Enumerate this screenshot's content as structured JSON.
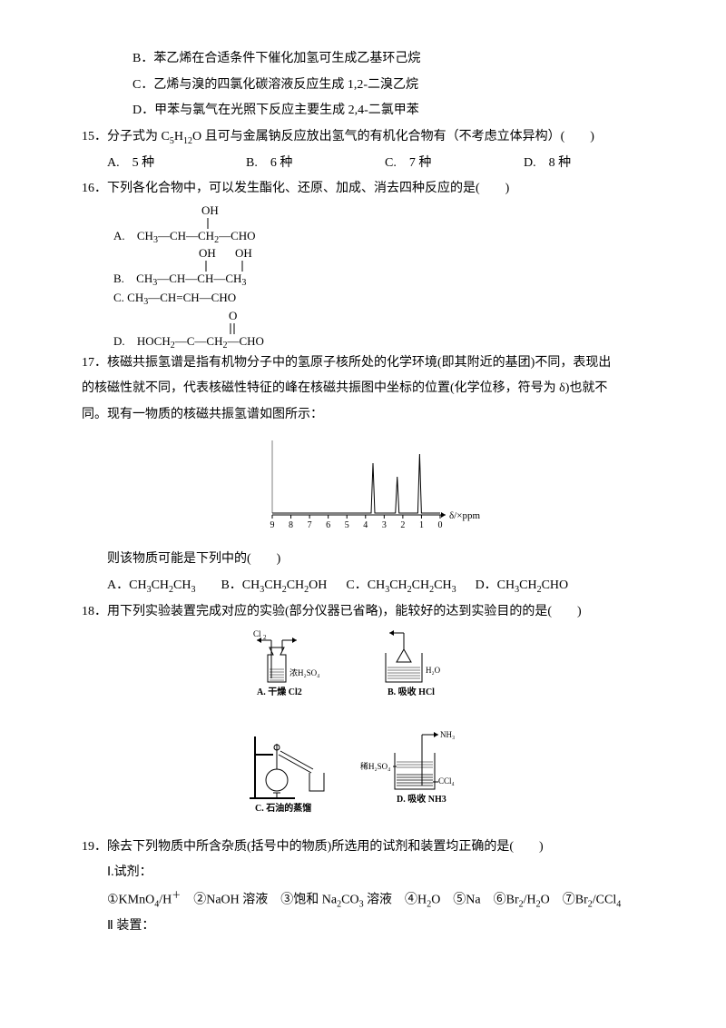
{
  "optionsBD": {
    "B": "B．苯乙烯在合适条件下催化加氢可生成乙基环己烷",
    "C": "C．乙烯与溴的四氯化碳溶液反应生成 1,2-二溴乙烷",
    "D": "D．甲苯与氯气在光照下反应主要生成 2,4-二氯甲苯"
  },
  "q15": {
    "num": "15．",
    "text_a": "分子式为 C",
    "text_b": "H",
    "text_c": "O 且可与金属钠反应放出氢气的有机化合物有（不考虑立体异构）(　　)",
    "opts": {
      "A": "A.　5 种",
      "B": "B.　6 种",
      "C": "C.　7 种",
      "D": "D.　8 种"
    }
  },
  "q16": {
    "num": "16．",
    "text": "下列各化合物中，可以发生酯化、还原、加成、消去四种反应的是(　　)",
    "structs": {
      "A": {
        "label": "A.",
        "oh": "OH",
        "formula": [
          "CH",
          "3",
          "—CH—CH",
          "2",
          "—CHO"
        ]
      },
      "B": {
        "label": "B.",
        "oh1": "OH",
        "oh2": "OH",
        "formula": [
          "CH",
          "3",
          "—CH—CH—CH",
          "3",
          ""
        ]
      },
      "C": {
        "label": "C.",
        "formula": [
          "CH",
          "3",
          "—CH=CH—CHO"
        ]
      },
      "D": {
        "label": "D.",
        "o": "O",
        "formula": [
          "HOCH",
          "2",
          "—C—CH",
          "2",
          "—CHO"
        ]
      }
    }
  },
  "q17": {
    "num": "17．",
    "p1": "核磁共振氢谱是指有机物分子中的氢原子核所处的化学环境(即其附近的基团)不同，表现出",
    "p2": "的核磁性就不同，代表核磁性特征的峰在核磁共振图中坐标的位置(化学位移，符号为 δ)也就不",
    "p3": "同。现有一物质的核磁共振氢谱如图所示：",
    "nmr": {
      "axis": [
        "9",
        "8",
        "7",
        "6",
        "5",
        "4",
        "3",
        "2",
        "1",
        "0"
      ],
      "xlabel": "δ/×ppm",
      "peaks": [
        {
          "x": 3.6,
          "h": 55
        },
        {
          "x": 2.3,
          "h": 40
        },
        {
          "x": 1.1,
          "h": 65
        }
      ],
      "bg": "#ffffff",
      "line": "#000000"
    },
    "after": "则该物质可能是下列中的(　　)",
    "opts": {
      "A": "A．CH3CH2CH3",
      "B": "B．CH3CH2CH2OH",
      "C": "C．CH3CH2CH2CH3",
      "D": "D．CH3CH2CHO"
    }
  },
  "q18": {
    "num": "18．",
    "text": "用下列实验装置完成对应的实验(部分仪器已省略)，能较好的达到实验目的的是(　　)",
    "apparatus": {
      "A": {
        "gas": "Cl2",
        "liquid": "浓H2SO4",
        "caption": "A. 干燥 Cl2"
      },
      "B": {
        "gas": "HCl",
        "liquid": "H2O",
        "caption": "B. 吸收 HCl"
      },
      "C": {
        "caption": "C. 石油的蒸馏"
      },
      "D": {
        "gas": "NH3",
        "liq1": "稀H2SO4",
        "liq2": "CCl4",
        "caption": "D. 吸收 NH3"
      }
    }
  },
  "q19": {
    "num": "19．",
    "text": "除去下列物质中所含杂质(括号中的物质)所选用的试剂和装置均正确的是(　　)",
    "sec1": "Ⅰ.试剂：",
    "reagents": "①KMnO4/H＋　②NaOH 溶液　③饱和 Na2CO3 溶液　④H2O　⑤Na　⑥Br2/H2O　⑦Br2/CCl4",
    "sec2": "Ⅱ 装置："
  }
}
